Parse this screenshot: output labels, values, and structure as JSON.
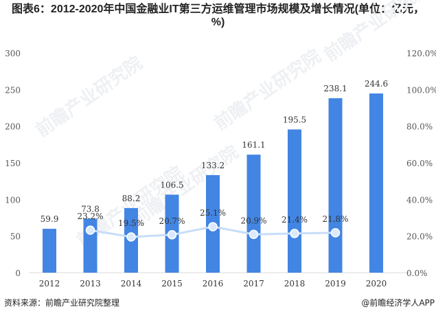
{
  "title": "图表6：2012-2020年中国金融业IT第三方运维管理市场规模及增长情况(单位：亿元，%)",
  "source": "资料来源：前瞻产业研究院整理",
  "brand": "@前瞻经济学人APP",
  "watermark": "前瞻产业研究院",
  "colors": {
    "bar": "#4285e3",
    "line": "#c6ddf8",
    "marker": "#dbe9fb",
    "text": "#333333"
  },
  "chart_data": {
    "type": "bar",
    "categories": [
      "2012",
      "2013",
      "2014",
      "2015",
      "2016",
      "2017",
      "2018",
      "2019",
      "2020"
    ],
    "series": [
      {
        "type": "bar",
        "axis": "left",
        "values": [
          59.9,
          73.8,
          88.2,
          106.5,
          133.2,
          161.1,
          195.5,
          238.1,
          244.6
        ],
        "labels": [
          "59.9",
          "73.8",
          "88.2",
          "106.5",
          "133.2",
          "161.1",
          "195.5",
          "238.1",
          "244.6"
        ]
      },
      {
        "type": "line",
        "axis": "right",
        "values": [
          null,
          23.2,
          19.5,
          20.7,
          25.1,
          20.9,
          21.4,
          21.8,
          null
        ],
        "labels": [
          "",
          "23.2%",
          "19.5%",
          "20.7%",
          "25.1%",
          "20.9%",
          "21.4%",
          "21.8%",
          ""
        ]
      }
    ],
    "ylim": [
      0,
      300
    ],
    "y2lim": [
      0,
      120
    ],
    "yticks": [
      "0",
      "50",
      "100",
      "150",
      "200",
      "250",
      "300"
    ],
    "y2ticks": [
      "0.0%",
      "20.0%",
      "40.0%",
      "60.0%",
      "80.0%",
      "100.0%",
      "120.0%"
    ],
    "grid": false,
    "legend": "none"
  }
}
